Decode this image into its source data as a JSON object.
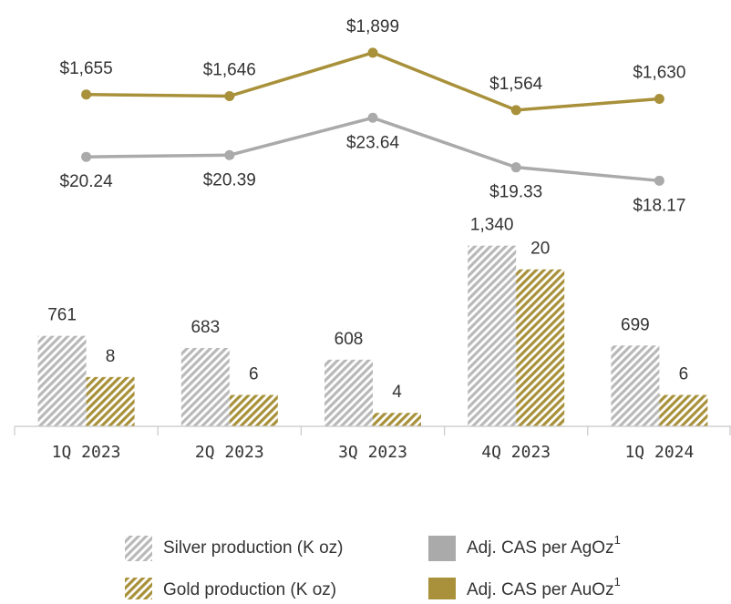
{
  "chart_data": [
    {
      "type": "bar",
      "categories": [
        "1Q 2023",
        "2Q 2023",
        "3Q 2023",
        "4Q 2023",
        "1Q 2024"
      ],
      "series": [
        {
          "name": "Silver production (K oz)",
          "color": "#b9b9b9",
          "pattern": "hatch",
          "values": [
            761,
            683,
            608,
            1340,
            699
          ],
          "value_labels": [
            "761",
            "683",
            "608",
            "1,340",
            "699"
          ]
        },
        {
          "name": "Gold production (K oz)",
          "color": "#a8913a",
          "pattern": "hatch",
          "axis": "y2",
          "values": [
            8,
            6,
            4,
            20,
            6
          ]
        }
      ],
      "ylim": [
        180,
        2800
      ],
      "y2lim": [
        2.5,
        48
      ]
    },
    {
      "type": "line",
      "series": [
        {
          "name": "Adj. CAS per AgOz",
          "footnote": "1",
          "color": "#aaaaaa",
          "label_position": "below",
          "values": [
            20.24,
            20.39,
            23.64,
            19.33,
            18.17
          ],
          "value_labels": [
            "$20.24",
            "$20.39",
            "$23.64",
            "$19.33",
            "$18.17"
          ]
        },
        {
          "name": "Adj. CAS per AuOz",
          "footnote": "1",
          "color": "#a8913a",
          "label_position": "above",
          "axis": "y2",
          "values": [
            1655,
            1646,
            1899,
            1564,
            1630
          ],
          "value_labels": [
            "$1,655",
            "$1,646",
            "$1,899",
            "$1,564",
            "$1,630"
          ]
        }
      ],
      "ylim": [
        -3.2,
        32.3
      ],
      "y2lim": [
        -280,
        2100
      ]
    }
  ]
}
